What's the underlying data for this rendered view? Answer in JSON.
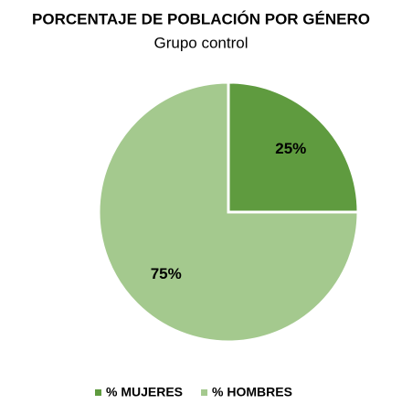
{
  "chart_data": {
    "type": "pie",
    "title": "PORCENTAJE DE POBLACIÓN POR GÉNERO",
    "subtitle": "Grupo control",
    "categories": [
      "% MUJERES",
      "% HOMBRES"
    ],
    "values": [
      25,
      75
    ],
    "value_labels": [
      "25%",
      "75%"
    ],
    "colors": [
      "#5f9b3f",
      "#a4c98e"
    ],
    "legend": "bottom"
  }
}
